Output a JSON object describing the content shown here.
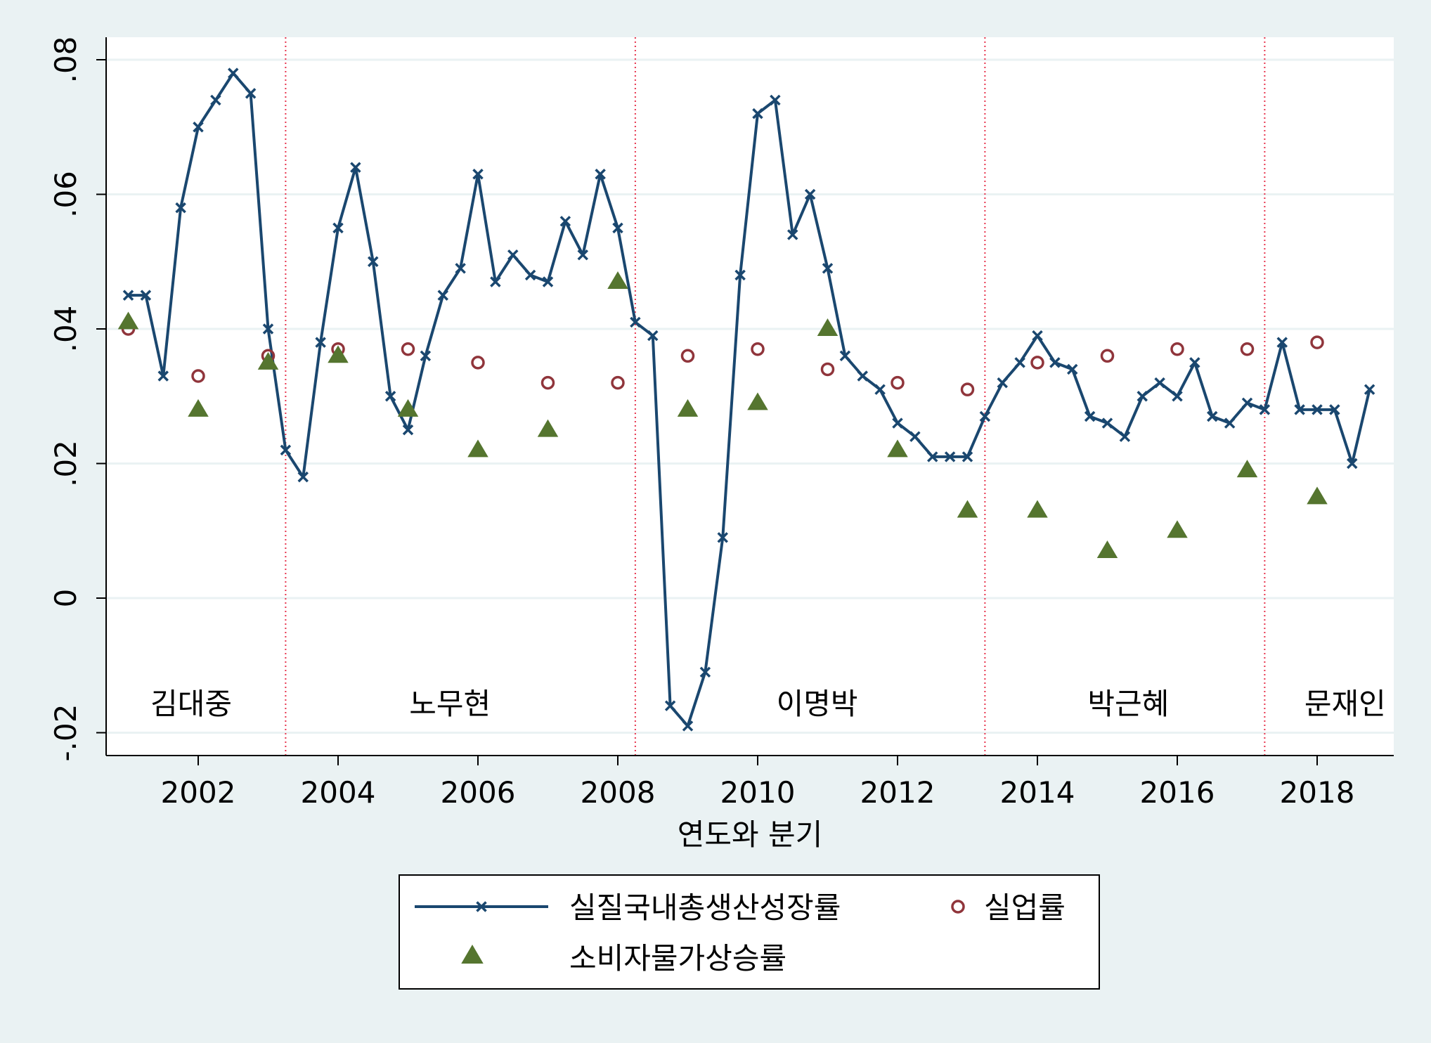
{
  "chart_data": {
    "type": "line",
    "title": "",
    "xlabel": "연도와 분기",
    "ylabel": "",
    "xlim": [
      2000.75,
      2019.25
    ],
    "ylim": [
      -0.025,
      0.083
    ],
    "grid": true,
    "x_ticks": [
      2002,
      2004,
      2006,
      2008,
      2010,
      2012,
      2014,
      2016,
      2018
    ],
    "x_tick_labels": [
      "2002",
      "2004",
      "2006",
      "2008",
      "2010",
      "2012",
      "2014",
      "2016",
      "2018"
    ],
    "y_ticks": [
      -0.02,
      0,
      0.02,
      0.04,
      0.06,
      0.08
    ],
    "y_tick_labels": [
      "-.02",
      "0",
      ".02",
      ".04",
      ".06",
      ".08"
    ],
    "colors": {
      "gdp": "#1a476f",
      "unemployment": "#90353b",
      "cpi": "#55752f",
      "divider": "#e8364f",
      "plot_bg": "#ffffff",
      "outer_bg": "#eaf2f3"
    },
    "legend_position": "bottom",
    "presidents": [
      {
        "name": "김대중",
        "label_x": 2001.9
      },
      {
        "name": "노무현",
        "label_x": 2005.6
      },
      {
        "name": "이명박",
        "label_x": 2010.85
      },
      {
        "name": "박근혜",
        "label_x": 2015.3
      },
      {
        "name": "문재인",
        "label_x": 2018.4
      }
    ],
    "term_dividers": [
      2003.25,
      2008.25,
      2013.25,
      2017.25
    ],
    "series": [
      {
        "name": "실질국내총생산성장률",
        "style": "line-x",
        "x": [
          2001.0,
          2001.25,
          2001.5,
          2001.75,
          2002.0,
          2002.25,
          2002.5,
          2002.75,
          2003.0,
          2003.25,
          2003.5,
          2003.75,
          2004.0,
          2004.25,
          2004.5,
          2004.75,
          2005.0,
          2005.25,
          2005.5,
          2005.75,
          2006.0,
          2006.25,
          2006.5,
          2006.75,
          2007.0,
          2007.25,
          2007.5,
          2007.75,
          2008.0,
          2008.25,
          2008.5,
          2008.75,
          2009.0,
          2009.25,
          2009.5,
          2009.75,
          2010.0,
          2010.25,
          2010.5,
          2010.75,
          2011.0,
          2011.25,
          2011.5,
          2011.75,
          2012.0,
          2012.25,
          2012.5,
          2012.75,
          2013.0,
          2013.25,
          2013.5,
          2013.75,
          2014.0,
          2014.25,
          2014.5,
          2014.75,
          2015.0,
          2015.25,
          2015.5,
          2015.75,
          2016.0,
          2016.25,
          2016.5,
          2016.75,
          2017.0,
          2017.25,
          2017.5,
          2017.75,
          2018.0,
          2018.25,
          2018.5,
          2018.75
        ],
        "values": [
          0.045,
          0.045,
          0.033,
          0.058,
          0.07,
          0.074,
          0.078,
          0.075,
          0.04,
          0.022,
          0.018,
          0.038,
          0.055,
          0.064,
          0.05,
          0.03,
          0.025,
          0.036,
          0.045,
          0.049,
          0.063,
          0.047,
          0.051,
          0.048,
          0.047,
          0.056,
          0.051,
          0.063,
          0.055,
          0.041,
          0.039,
          -0.016,
          -0.019,
          -0.011,
          0.009,
          0.048,
          0.072,
          0.074,
          0.054,
          0.06,
          0.049,
          0.036,
          0.033,
          0.031,
          0.026,
          0.024,
          0.021,
          0.021,
          0.021,
          0.027,
          0.032,
          0.035,
          0.039,
          0.035,
          0.034,
          0.027,
          0.026,
          0.024,
          0.03,
          0.032,
          0.03,
          0.035,
          0.027,
          0.026,
          0.029,
          0.028,
          0.038,
          0.028,
          0.028,
          0.028,
          0.02,
          0.031
        ]
      },
      {
        "name": "실업률",
        "style": "hollow-circle",
        "x": [
          2001,
          2002,
          2003,
          2004,
          2005,
          2006,
          2007,
          2008,
          2009,
          2010,
          2011,
          2012,
          2013,
          2014,
          2015,
          2016,
          2017,
          2018
        ],
        "values": [
          0.04,
          0.033,
          0.036,
          0.037,
          0.037,
          0.035,
          0.032,
          0.032,
          0.036,
          0.037,
          0.034,
          0.032,
          0.031,
          0.035,
          0.036,
          0.037,
          0.037,
          0.038
        ]
      },
      {
        "name": "소비자물가상승률",
        "style": "filled-triangle",
        "x": [
          2001,
          2002,
          2003,
          2004,
          2005,
          2006,
          2007,
          2008,
          2009,
          2010,
          2011,
          2012,
          2013,
          2014,
          2015,
          2016,
          2017,
          2018
        ],
        "values": [
          0.041,
          0.028,
          0.035,
          0.036,
          0.028,
          0.022,
          0.025,
          0.047,
          0.028,
          0.029,
          0.04,
          0.022,
          0.013,
          0.013,
          0.007,
          0.01,
          0.019,
          0.015
        ]
      }
    ]
  }
}
